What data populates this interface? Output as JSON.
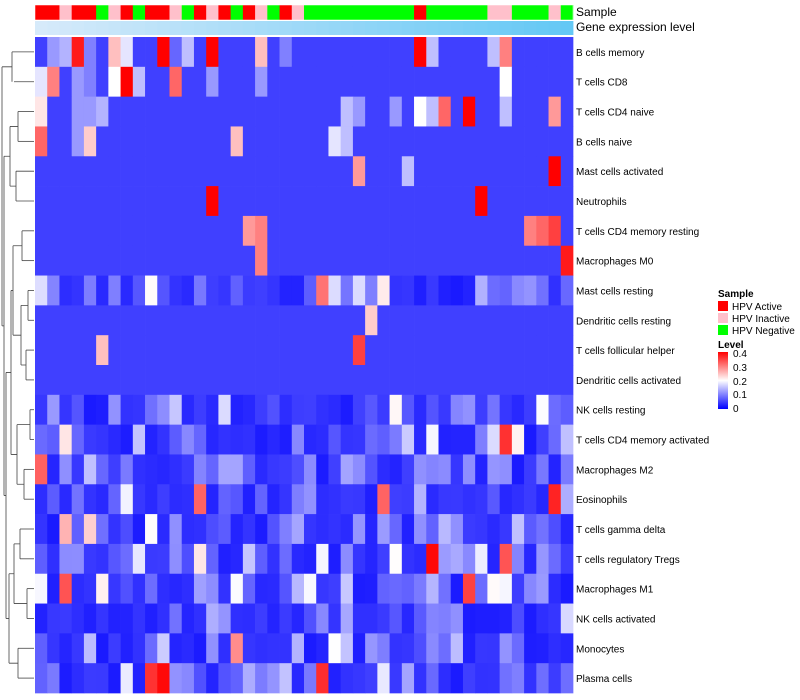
{
  "chart_data": {
    "type": "heatmap",
    "annotation_labels": [
      "Sample",
      "Gene expression level"
    ],
    "row_labels": [
      "B cells memory",
      "T cells CD8",
      "T cells CD4 naive",
      "B cells naive",
      "Mast cells activated",
      "Neutrophils",
      "T cells CD4 memory resting",
      "Macrophages M0",
      "Mast cells resting",
      "Dendritic cells resting",
      "T cells follicular helper",
      "Dendritic cells activated",
      "NK cells resting",
      "T cells CD4 memory activated",
      "Macrophages M2",
      "Eosinophils",
      "T cells gamma delta",
      "T cells regulatory  Tregs",
      "Macrophages M1",
      "NK cells activated",
      "Monocytes",
      "Plasma cells"
    ],
    "sample_groups": [
      "A",
      "A",
      "I",
      "A",
      "A",
      "N",
      "I",
      "A",
      "N",
      "A",
      "A",
      "I",
      "N",
      "A",
      "I",
      "A",
      "N",
      "A",
      "I",
      "N",
      "A",
      "I",
      "N",
      "N",
      "N",
      "N",
      "N",
      "N",
      "N",
      "N",
      "N",
      "A",
      "N",
      "N",
      "N",
      "N",
      "N",
      "I",
      "I",
      "N",
      "N",
      "N",
      "I",
      "N"
    ],
    "sample_legend": {
      "title": "Sample",
      "entries": [
        {
          "key": "A",
          "label": "HPV Active",
          "color": "#ff0000"
        },
        {
          "key": "I",
          "label": "HPV Inactive",
          "color": "#ffc0cb"
        },
        {
          "key": "N",
          "label": "HPV Negative",
          "color": "#00ff00"
        }
      ]
    },
    "level_legend": {
      "title": "Level",
      "tick_labels": [
        "0.4",
        "0.3",
        "0.2",
        "0.1",
        "0"
      ],
      "ticks": [
        0.4,
        0.3,
        0.2,
        0.1,
        0
      ],
      "range": [
        0,
        0.4
      ],
      "colors": [
        "#0000ff",
        "#ffffff",
        "#ff0000"
      ]
    },
    "seed_rows": {
      "0": [
        0.05,
        0.12,
        0.14,
        0.38,
        0.1,
        0.05,
        0.25,
        0.18,
        0.05,
        0.05,
        0.4,
        0.08,
        0.15,
        0.05,
        0.4,
        0.05,
        0.05,
        0.05,
        0.25,
        0.05,
        0.1,
        0.05,
        0.05,
        0.05,
        0.05,
        0.05,
        0.05,
        0.05,
        0.05,
        0.05,
        0.05,
        0.4,
        0.15,
        0.05,
        0.05,
        0.05,
        0.05,
        0.15,
        0.3,
        0.05,
        0.05,
        0.05,
        0.05,
        0.05
      ],
      "1": [
        0.18,
        0.3,
        0.05,
        0.12,
        0.1,
        0.05,
        0.2,
        0.4,
        0.15,
        0.05,
        0.05,
        0.32,
        0.05,
        0.05,
        0.12,
        0.05,
        0.05,
        0.05,
        0.12,
        0.05,
        0.05,
        0.05,
        0.05,
        0.05,
        0.05,
        0.05,
        0.05,
        0.05,
        0.05,
        0.05,
        0.05,
        0.05,
        0.05,
        0.05,
        0.05,
        0.05,
        0.05,
        0.05,
        0.2,
        0.05,
        0.05,
        0.05,
        0.05,
        0.05
      ],
      "2": [
        0.22,
        0.05,
        0.05,
        0.12,
        0.12,
        0.14,
        0.05,
        0.05,
        0.05,
        0.05,
        0.05,
        0.05,
        0.05,
        0.05,
        0.05,
        0.05,
        0.05,
        0.05,
        0.05,
        0.05,
        0.05,
        0.05,
        0.05,
        0.05,
        0.05,
        0.15,
        0.12,
        0.05,
        0.05,
        0.12,
        0.05,
        0.2,
        0.15,
        0.32,
        0.05,
        0.4,
        0.05,
        0.05,
        0.15,
        0.05,
        0.05,
        0.05,
        0.28,
        0.05
      ],
      "3": [
        0.32,
        0.05,
        0.05,
        0.12,
        0.24,
        0.05,
        0.05,
        0.05,
        0.05,
        0.05,
        0.05,
        0.05,
        0.05,
        0.05,
        0.05,
        0.05,
        0.25,
        0.05,
        0.05,
        0.05,
        0.05,
        0.05,
        0.05,
        0.05,
        0.18,
        0.15,
        0.05,
        0.05,
        0.05,
        0.05,
        0.05,
        0.05,
        0.05,
        0.05,
        0.05,
        0.05,
        0.05,
        0.05,
        0.05,
        0.05,
        0.05,
        0.05,
        0.05,
        0.05
      ],
      "4": [
        0.05,
        0.05,
        0.05,
        0.05,
        0.05,
        0.05,
        0.05,
        0.05,
        0.05,
        0.05,
        0.05,
        0.05,
        0.05,
        0.05,
        0.05,
        0.05,
        0.05,
        0.05,
        0.05,
        0.05,
        0.05,
        0.05,
        0.05,
        0.05,
        0.05,
        0.05,
        0.28,
        0.05,
        0.05,
        0.05,
        0.15,
        0.05,
        0.05,
        0.05,
        0.05,
        0.05,
        0.05,
        0.05,
        0.05,
        0.05,
        0.05,
        0.05,
        0.4,
        0.05
      ],
      "5": [
        0.05,
        0.05,
        0.05,
        0.05,
        0.05,
        0.05,
        0.05,
        0.05,
        0.05,
        0.05,
        0.05,
        0.05,
        0.05,
        0.05,
        0.4,
        0.05,
        0.05,
        0.05,
        0.05,
        0.05,
        0.05,
        0.05,
        0.05,
        0.05,
        0.05,
        0.05,
        0.05,
        0.05,
        0.05,
        0.05,
        0.05,
        0.05,
        0.05,
        0.05,
        0.05,
        0.05,
        0.4,
        0.05,
        0.05,
        0.05,
        0.05,
        0.05,
        0.05,
        0.05
      ],
      "6": [
        0.05,
        0.05,
        0.05,
        0.05,
        0.05,
        0.05,
        0.05,
        0.05,
        0.05,
        0.05,
        0.05,
        0.05,
        0.05,
        0.05,
        0.05,
        0.05,
        0.05,
        0.28,
        0.3,
        0.05,
        0.05,
        0.05,
        0.05,
        0.05,
        0.05,
        0.05,
        0.05,
        0.05,
        0.05,
        0.05,
        0.05,
        0.05,
        0.05,
        0.05,
        0.05,
        0.05,
        0.05,
        0.05,
        0.05,
        0.05,
        0.3,
        0.32,
        0.35,
        0.05
      ],
      "7": [
        0.05,
        0.05,
        0.05,
        0.05,
        0.05,
        0.05,
        0.05,
        0.05,
        0.05,
        0.05,
        0.05,
        0.05,
        0.05,
        0.05,
        0.05,
        0.05,
        0.05,
        0.05,
        0.3,
        0.05,
        0.05,
        0.05,
        0.05,
        0.05,
        0.05,
        0.05,
        0.05,
        0.05,
        0.05,
        0.05,
        0.05,
        0.05,
        0.05,
        0.05,
        0.05,
        0.05,
        0.05,
        0.05,
        0.05,
        0.05,
        0.05,
        0.05,
        0.05,
        0.38
      ],
      "9": [
        0.05,
        0.05,
        0.05,
        0.05,
        0.05,
        0.05,
        0.05,
        0.05,
        0.05,
        0.05,
        0.05,
        0.05,
        0.05,
        0.05,
        0.05,
        0.05,
        0.05,
        0.05,
        0.05,
        0.05,
        0.05,
        0.05,
        0.05,
        0.05,
        0.05,
        0.05,
        0.05,
        0.24,
        0.05,
        0.05,
        0.05,
        0.05,
        0.05,
        0.05,
        0.05,
        0.05,
        0.05,
        0.05,
        0.05,
        0.05,
        0.05,
        0.05,
        0.05,
        0.05
      ],
      "10": [
        0.05,
        0.05,
        0.05,
        0.05,
        0.05,
        0.25,
        0.05,
        0.05,
        0.05,
        0.05,
        0.05,
        0.05,
        0.05,
        0.05,
        0.05,
        0.05,
        0.05,
        0.05,
        0.05,
        0.05,
        0.05,
        0.05,
        0.05,
        0.05,
        0.05,
        0.05,
        0.35,
        0.05,
        0.05,
        0.05,
        0.05,
        0.05,
        0.05,
        0.05,
        0.05,
        0.05,
        0.05,
        0.05,
        0.05,
        0.05,
        0.05,
        0.05,
        0.05,
        0.05
      ],
      "11": [
        0.05,
        0.05,
        0.05,
        0.05,
        0.05,
        0.05,
        0.05,
        0.05,
        0.05,
        0.05,
        0.05,
        0.05,
        0.05,
        0.05,
        0.05,
        0.05,
        0.05,
        0.05,
        0.05,
        0.05,
        0.05,
        0.05,
        0.05,
        0.05,
        0.05,
        0.05,
        0.05,
        0.05,
        0.05,
        0.05,
        0.05,
        0.05,
        0.05,
        0.05,
        0.05,
        0.05,
        0.05,
        0.05,
        0.05,
        0.05,
        0.05,
        0.05,
        0.05,
        0.05
      ]
    }
  }
}
